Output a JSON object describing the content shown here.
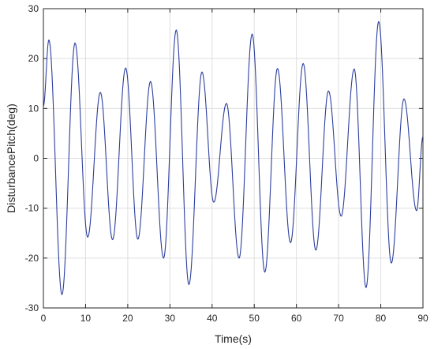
{
  "chart_data": {
    "type": "line",
    "title": "",
    "xlabel": "Time(s)",
    "ylabel": "DisturbancePitch(deg)",
    "xlim": [
      0,
      90
    ],
    "ylim": [
      -30,
      30
    ],
    "xticks": [
      0,
      10,
      20,
      30,
      40,
      50,
      60,
      70,
      80,
      90
    ],
    "yticks": [
      -30,
      -20,
      -10,
      0,
      10,
      20,
      30
    ],
    "xtick_labels": [
      "0",
      "10",
      "20",
      "30",
      "40",
      "50",
      "60",
      "70",
      "80",
      "90"
    ],
    "ytick_labels": [
      "-30",
      "-20",
      "-10",
      "0",
      "10",
      "20",
      "30"
    ],
    "grid": true,
    "line_color": "#2c3e9e",
    "series": [
      {
        "extrema": [
          [
            0,
            10.5
          ],
          [
            1.3,
            23.7
          ],
          [
            4.4,
            -27.3
          ],
          [
            7.5,
            23.1
          ],
          [
            10.5,
            -15.8
          ],
          [
            13.5,
            13.2
          ],
          [
            16.4,
            -16.3
          ],
          [
            19.5,
            18.1
          ],
          [
            22.4,
            -16.2
          ],
          [
            25.4,
            15.4
          ],
          [
            28.5,
            -20.0
          ],
          [
            31.5,
            25.7
          ],
          [
            34.5,
            -25.3
          ],
          [
            37.6,
            17.3
          ],
          [
            40.4,
            -8.8
          ],
          [
            43.4,
            11.0
          ],
          [
            46.4,
            -20.0
          ],
          [
            49.5,
            24.9
          ],
          [
            52.5,
            -22.8
          ],
          [
            55.5,
            18.0
          ],
          [
            58.6,
            -16.9
          ],
          [
            61.6,
            19.0
          ],
          [
            64.6,
            -18.4
          ],
          [
            67.6,
            13.5
          ],
          [
            70.6,
            -11.6
          ],
          [
            73.7,
            17.9
          ],
          [
            76.5,
            -25.9
          ],
          [
            79.5,
            27.4
          ],
          [
            82.5,
            -21.0
          ],
          [
            85.5,
            11.9
          ],
          [
            88.5,
            -10.5
          ],
          [
            90,
            4.3
          ]
        ]
      }
    ]
  }
}
